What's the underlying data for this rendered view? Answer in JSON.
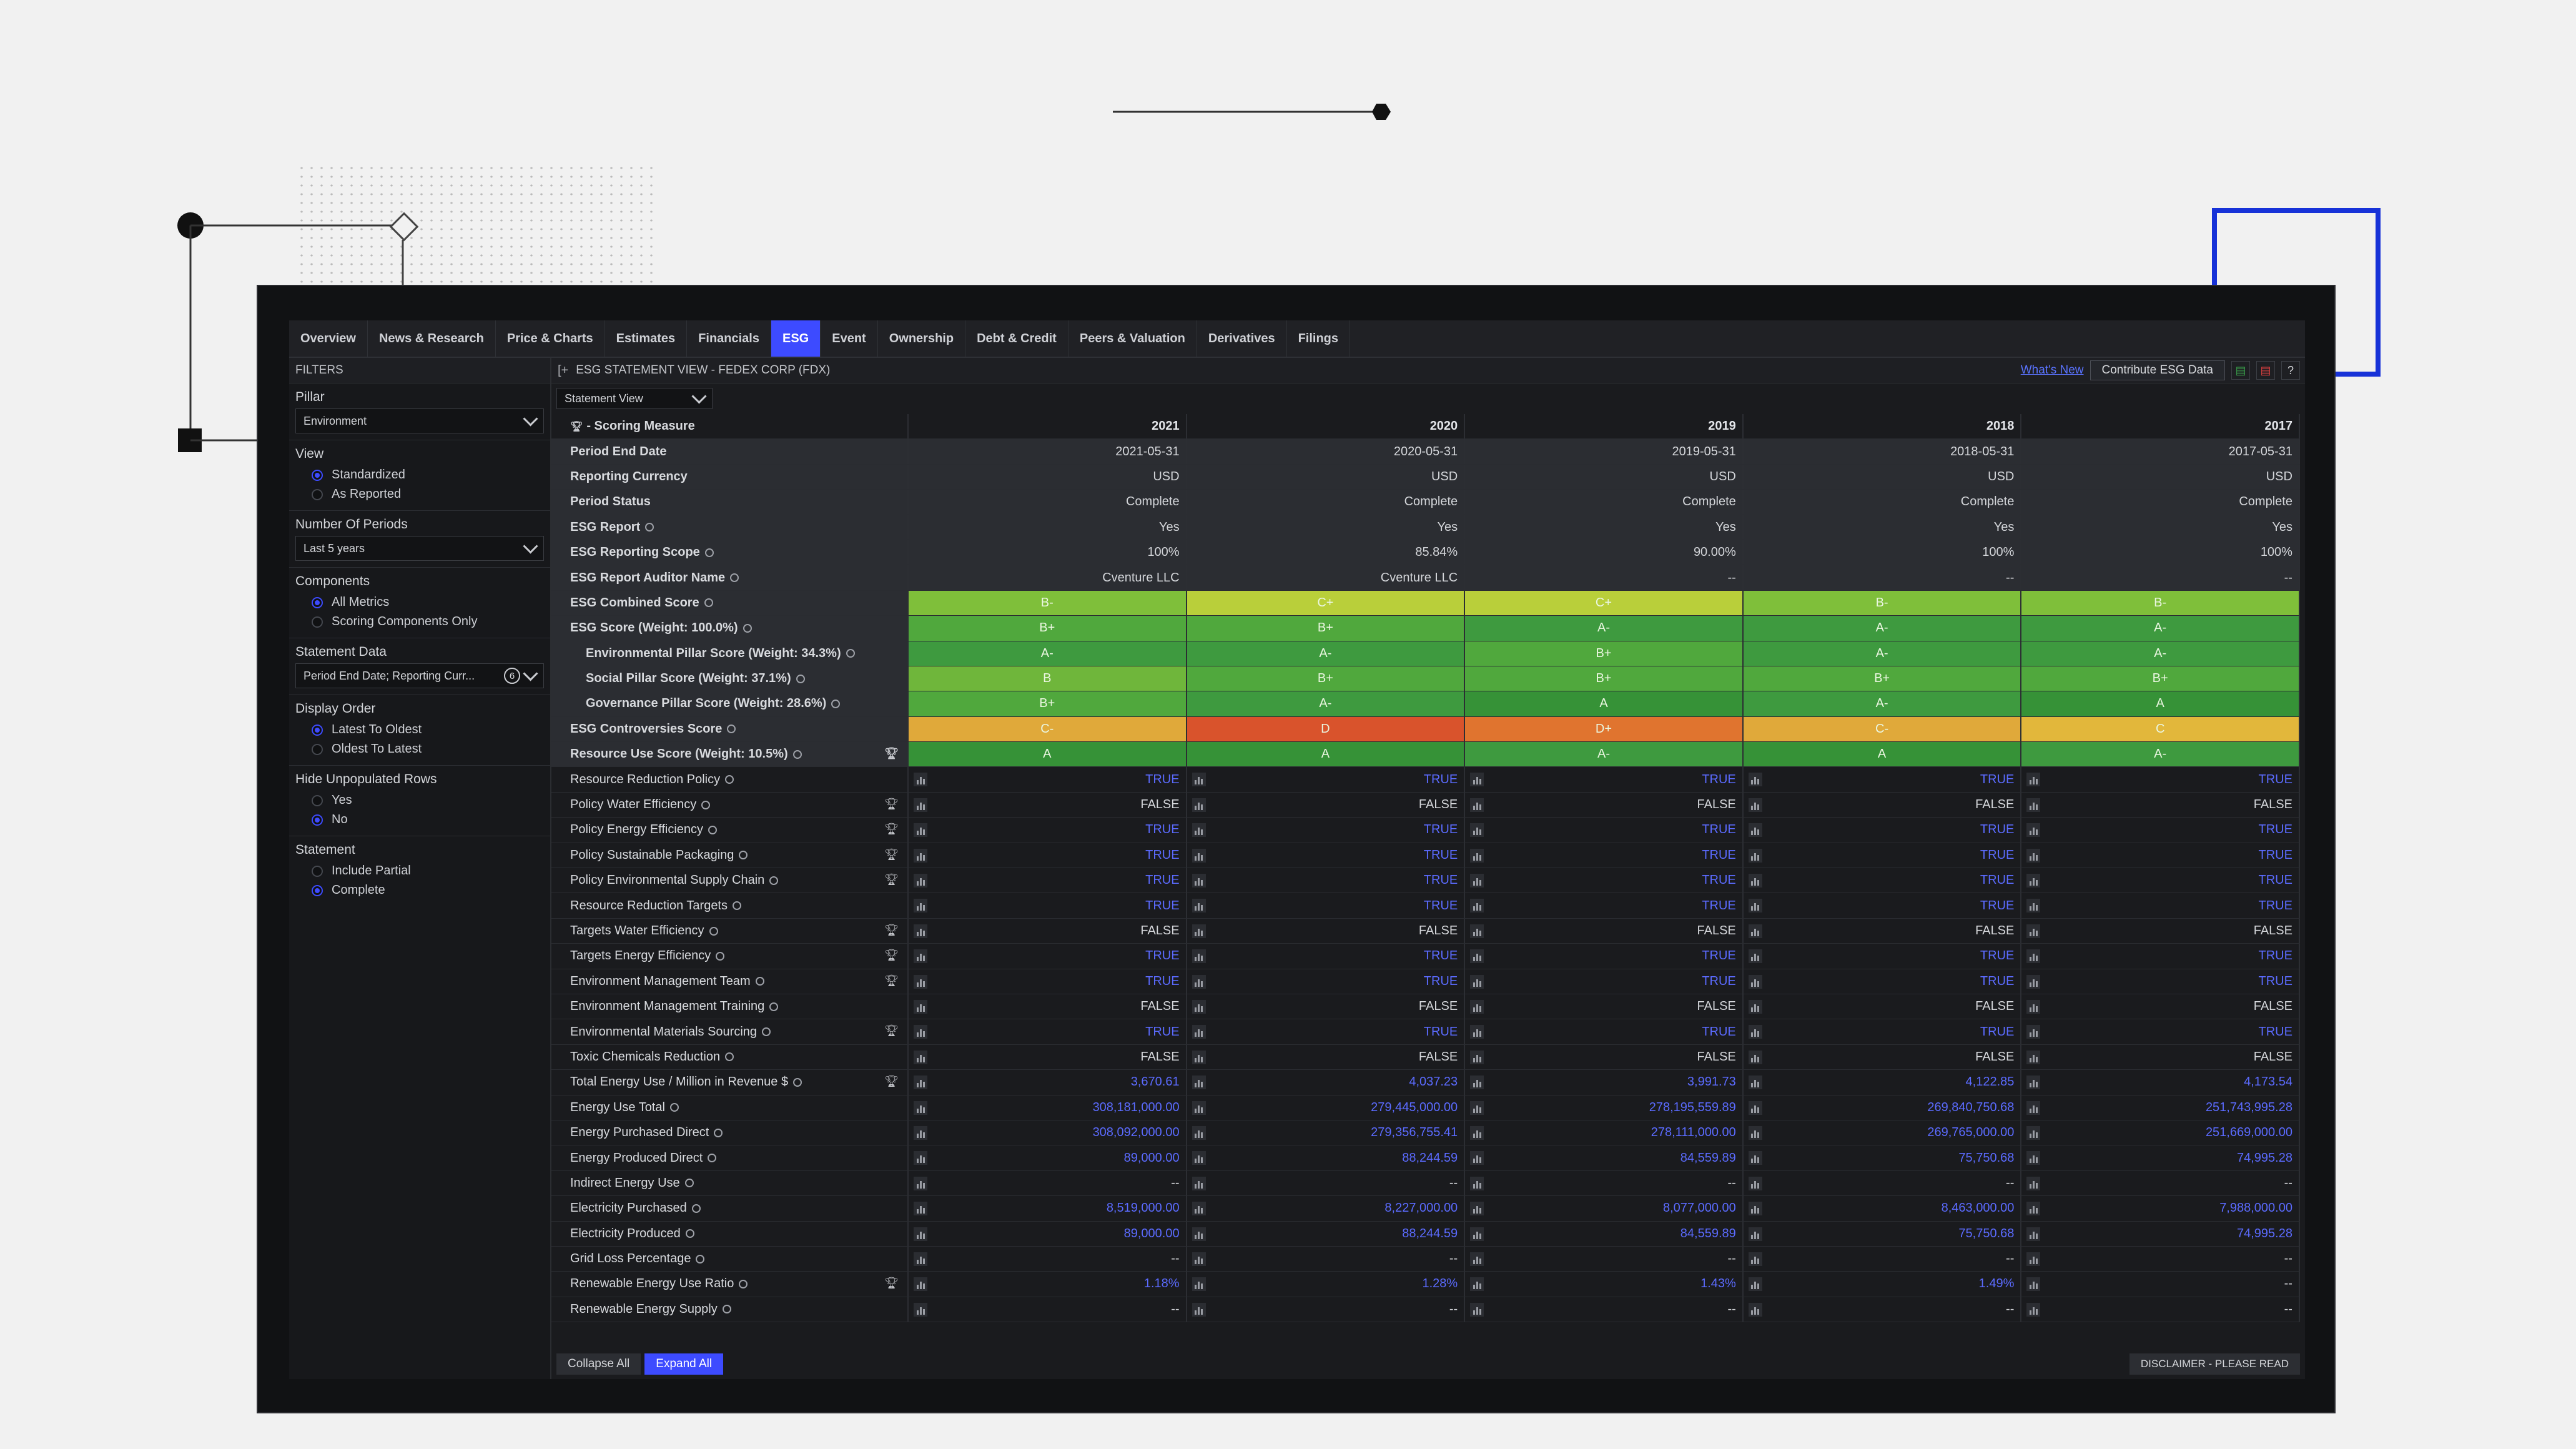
{
  "tabs": [
    "Overview",
    "News & Research",
    "Price & Charts",
    "Estimates",
    "Financials",
    "ESG",
    "Event",
    "Ownership",
    "Debt & Credit",
    "Peers & Valuation",
    "Derivatives",
    "Filings"
  ],
  "active_tab": "ESG",
  "filters": {
    "title": "FILTERS",
    "pillar_label": "Pillar",
    "pillar_value": "Environment",
    "view_label": "View",
    "view_options": [
      "Standardized",
      "As Reported"
    ],
    "periods_label": "Number Of Periods",
    "periods_value": "Last 5 years",
    "components_label": "Components",
    "components_options": [
      "All Metrics",
      "Scoring Components Only"
    ],
    "statement_data_label": "Statement Data",
    "statement_data_value": "Period End Date; Reporting Curr...",
    "statement_data_count": "6",
    "display_order_label": "Display Order",
    "display_order_options": [
      "Latest To Oldest",
      "Oldest To Latest"
    ],
    "hide_label": "Hide Unpopulated Rows",
    "hide_options": [
      "Yes",
      "No"
    ],
    "statement_label": "Statement",
    "statement_options": [
      "Include Partial",
      "Complete"
    ]
  },
  "main": {
    "title": "ESG STATEMENT VIEW - FEDEX CORP (FDX)",
    "whats_new": "What's New",
    "contribute": "Contribute ESG Data",
    "statement_view": "Statement View",
    "collapse": "Collapse All",
    "expand": "Expand All",
    "disclaimer": "DISCLAIMER - PLEASE READ"
  },
  "colors": {
    "accent": "#3d4bff",
    "true_text": "#5b6bff",
    "green_dark": "#3e9a3f",
    "green": "#50a83d",
    "lime": "#9cc63a",
    "yellow_green": "#b9cf3a",
    "orange": "#e0a93a",
    "red": "#d9532c",
    "red_orange": "#e0742f"
  },
  "table": {
    "header": "- Scoring Measure",
    "years": [
      "2021",
      "2020",
      "2019",
      "2018",
      "2017"
    ],
    "rows": [
      {
        "label": "Period End Date",
        "style": "gray bold",
        "values": [
          "2021-05-31",
          "2020-05-31",
          "2019-05-31",
          "2018-05-31",
          "2017-05-31"
        ]
      },
      {
        "label": "Reporting Currency",
        "style": "gray bold",
        "values": [
          "USD",
          "USD",
          "USD",
          "USD",
          "USD"
        ]
      },
      {
        "label": "Period Status",
        "style": "gray bold",
        "values": [
          "Complete",
          "Complete",
          "Complete",
          "Complete",
          "Complete"
        ]
      },
      {
        "label": "ESG Report",
        "style": "gray bold",
        "info": true,
        "values": [
          "Yes",
          "Yes",
          "Yes",
          "Yes",
          "Yes"
        ]
      },
      {
        "label": "ESG Reporting Scope",
        "style": "gray bold",
        "info": true,
        "values": [
          "100%",
          "85.84%",
          "90.00%",
          "100%",
          "100%"
        ]
      },
      {
        "label": "ESG Report Auditor Name",
        "style": "gray bold",
        "info": true,
        "values": [
          "Cventure LLC",
          "Cventure LLC",
          "--",
          "--",
          "--"
        ]
      },
      {
        "label": "ESG Combined Score",
        "style": "gray bold",
        "info": true,
        "grade": true,
        "values": [
          "B-",
          "C+",
          "C+",
          "B-",
          "B-"
        ],
        "colors": [
          "#7fbf3a",
          "#b9cf3a",
          "#b9cf3a",
          "#7fbf3a",
          "#7fbf3a"
        ]
      },
      {
        "label": "ESG Score (Weight: 100.0%)",
        "style": "gray bold",
        "info": true,
        "grade": true,
        "values": [
          "B+",
          "B+",
          "A-",
          "A-",
          "A-"
        ],
        "colors": [
          "#50a83d",
          "#50a83d",
          "#3e9a3f",
          "#3e9a3f",
          "#3e9a3f"
        ]
      },
      {
        "label": "Environmental Pillar Score (Weight: 34.3%)",
        "style": "gray bold ind",
        "info": true,
        "grade": true,
        "values": [
          "A-",
          "A-",
          "B+",
          "A-",
          "A-"
        ],
        "colors": [
          "#3e9a3f",
          "#3e9a3f",
          "#50a83d",
          "#3e9a3f",
          "#3e9a3f"
        ]
      },
      {
        "label": "Social Pillar Score (Weight: 37.1%)",
        "style": "gray bold ind",
        "info": true,
        "grade": true,
        "values": [
          "B",
          "B+",
          "B+",
          "B+",
          "B+"
        ],
        "colors": [
          "#6fb63b",
          "#50a83d",
          "#50a83d",
          "#50a83d",
          "#50a83d"
        ]
      },
      {
        "label": "Governance Pillar Score (Weight: 28.6%)",
        "style": "gray bold ind",
        "info": true,
        "grade": true,
        "values": [
          "B+",
          "A-",
          "A",
          "A-",
          "A"
        ],
        "colors": [
          "#50a83d",
          "#3e9a3f",
          "#369237",
          "#3e9a3f",
          "#369237"
        ]
      },
      {
        "label": "ESG Controversies Score",
        "style": "gray bold",
        "info": true,
        "grade": true,
        "values": [
          "C-",
          "D",
          "D+",
          "C-",
          "C"
        ],
        "colors": [
          "#e0a93a",
          "#d9532c",
          "#e0742f",
          "#e0a93a",
          "#e2b73b"
        ]
      },
      {
        "label": "Resource Use Score (Weight: 10.5%)",
        "style": "gray bold",
        "info": true,
        "grade": true,
        "trophy": true,
        "values": [
          "A",
          "A",
          "A-",
          "A",
          "A-"
        ],
        "colors": [
          "#369237",
          "#369237",
          "#3e9a3f",
          "#369237",
          "#3e9a3f"
        ]
      },
      {
        "label": "Resource Reduction Policy",
        "info": true,
        "values": [
          "TRUE",
          "TRUE",
          "TRUE",
          "TRUE",
          "TRUE"
        ]
      },
      {
        "label": "Policy Water Efficiency",
        "info": true,
        "trophy": true,
        "values": [
          "FALSE",
          "FALSE",
          "FALSE",
          "FALSE",
          "FALSE"
        ]
      },
      {
        "label": "Policy Energy Efficiency",
        "info": true,
        "trophy": true,
        "values": [
          "TRUE",
          "TRUE",
          "TRUE",
          "TRUE",
          "TRUE"
        ]
      },
      {
        "label": "Policy Sustainable Packaging",
        "info": true,
        "trophy": true,
        "values": [
          "TRUE",
          "TRUE",
          "TRUE",
          "TRUE",
          "TRUE"
        ]
      },
      {
        "label": "Policy Environmental Supply Chain",
        "info": true,
        "trophy": true,
        "values": [
          "TRUE",
          "TRUE",
          "TRUE",
          "TRUE",
          "TRUE"
        ]
      },
      {
        "label": "Resource Reduction Targets",
        "info": true,
        "values": [
          "TRUE",
          "TRUE",
          "TRUE",
          "TRUE",
          "TRUE"
        ]
      },
      {
        "label": "Targets Water Efficiency",
        "info": true,
        "trophy": true,
        "values": [
          "FALSE",
          "FALSE",
          "FALSE",
          "FALSE",
          "FALSE"
        ]
      },
      {
        "label": "Targets Energy Efficiency",
        "info": true,
        "trophy": true,
        "values": [
          "TRUE",
          "TRUE",
          "TRUE",
          "TRUE",
          "TRUE"
        ]
      },
      {
        "label": "Environment Management Team",
        "info": true,
        "trophy": true,
        "values": [
          "TRUE",
          "TRUE",
          "TRUE",
          "TRUE",
          "TRUE"
        ]
      },
      {
        "label": "Environment Management Training",
        "info": true,
        "values": [
          "FALSE",
          "FALSE",
          "FALSE",
          "FALSE",
          "FALSE"
        ]
      },
      {
        "label": "Environmental Materials Sourcing",
        "info": true,
        "trophy": true,
        "values": [
          "TRUE",
          "TRUE",
          "TRUE",
          "TRUE",
          "TRUE"
        ]
      },
      {
        "label": "Toxic Chemicals Reduction",
        "info": true,
        "values": [
          "FALSE",
          "FALSE",
          "FALSE",
          "FALSE",
          "FALSE"
        ]
      },
      {
        "label": "Total Energy Use / Million in Revenue $",
        "info": true,
        "trophy": true,
        "values": [
          "3,670.61",
          "4,037.23",
          "3,991.73",
          "4,122.85",
          "4,173.54"
        ]
      },
      {
        "label": "Energy Use Total",
        "info": true,
        "values": [
          "308,181,000.00",
          "279,445,000.00",
          "278,195,559.89",
          "269,840,750.68",
          "251,743,995.28"
        ]
      },
      {
        "label": "Energy Purchased Direct",
        "info": true,
        "values": [
          "308,092,000.00",
          "279,356,755.41",
          "278,111,000.00",
          "269,765,000.00",
          "251,669,000.00"
        ]
      },
      {
        "label": "Energy Produced Direct",
        "info": true,
        "values": [
          "89,000.00",
          "88,244.59",
          "84,559.89",
          "75,750.68",
          "74,995.28"
        ]
      },
      {
        "label": "Indirect Energy Use",
        "info": true,
        "values": [
          "--",
          "--",
          "--",
          "--",
          "--"
        ]
      },
      {
        "label": "Electricity Purchased",
        "info": true,
        "values": [
          "8,519,000.00",
          "8,227,000.00",
          "8,077,000.00",
          "8,463,000.00",
          "7,988,000.00"
        ]
      },
      {
        "label": "Electricity Produced",
        "info": true,
        "values": [
          "89,000.00",
          "88,244.59",
          "84,559.89",
          "75,750.68",
          "74,995.28"
        ]
      },
      {
        "label": "Grid Loss Percentage",
        "info": true,
        "values": [
          "--",
          "--",
          "--",
          "--",
          "--"
        ]
      },
      {
        "label": "Renewable Energy Use Ratio",
        "info": true,
        "trophy": true,
        "values": [
          "1.18%",
          "1.28%",
          "1.43%",
          "1.49%",
          "--"
        ]
      },
      {
        "label": "Renewable Energy Supply",
        "info": true,
        "values": [
          "--",
          "--",
          "--",
          "--",
          "--"
        ]
      }
    ]
  }
}
